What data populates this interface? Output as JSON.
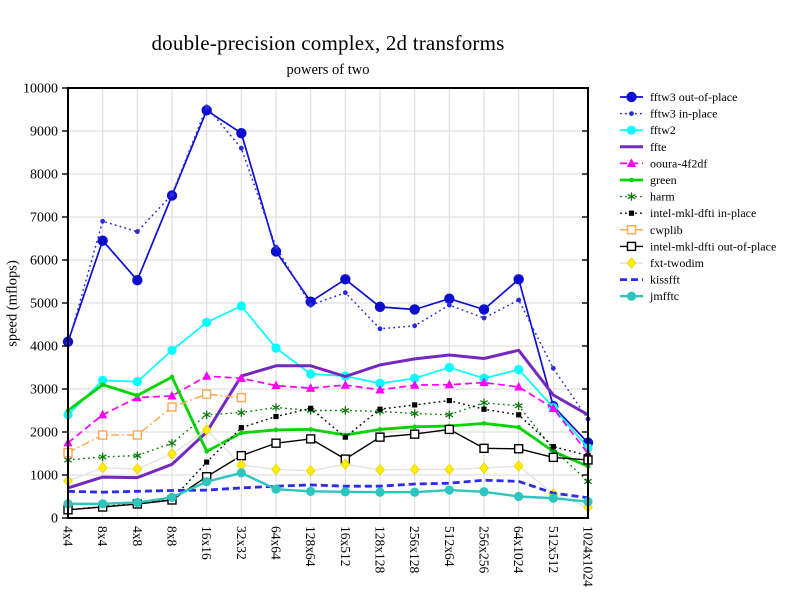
{
  "chart_data": {
    "type": "line",
    "title": "double-precision complex, 2d transforms",
    "subtitle": "powers of two",
    "xlabel": "",
    "ylabel": "speed (mflops)",
    "ylim": [
      0,
      10000
    ],
    "y_ticks": [
      0,
      1000,
      2000,
      3000,
      4000,
      5000,
      6000,
      7000,
      8000,
      9000,
      10000
    ],
    "grid": true,
    "legend_position": "right",
    "categories": [
      "4x4",
      "8x4",
      "4x8",
      "8x8",
      "16x16",
      "32x32",
      "64x64",
      "128x64",
      "16x512",
      "128x128",
      "256x128",
      "512x64",
      "256x256",
      "64x1024",
      "512x512",
      "1024x1024"
    ],
    "series": [
      {
        "name": "fftw3 out-of-place",
        "color": "#0d0dd0",
        "line": "solid",
        "width": 1.7,
        "marker": "circle-lg",
        "values": [
          4100,
          6450,
          5530,
          7500,
          9480,
          8950,
          6200,
          5030,
          5550,
          4910,
          4850,
          5100,
          4850,
          5550,
          2600,
          1750
        ]
      },
      {
        "name": "fftw3 in-place",
        "color": "#2a2ad6",
        "line": "dotted",
        "width": 1.5,
        "marker": "circle-sm",
        "values": [
          4050,
          6900,
          6660,
          7520,
          9560,
          8600,
          6300,
          4950,
          5240,
          4400,
          4470,
          4950,
          4650,
          5070,
          3480,
          2300
        ]
      },
      {
        "name": "fftw2",
        "color": "#00ffff",
        "line": "solid",
        "width": 1.7,
        "marker": "circle-md",
        "values": [
          2400,
          3200,
          3170,
          3900,
          4550,
          4930,
          3950,
          3350,
          3300,
          3130,
          3250,
          3500,
          3250,
          3450,
          2570,
          1630
        ]
      },
      {
        "name": "ffte",
        "color": "#7528bf",
        "line": "solid",
        "width": 3,
        "marker": "none",
        "values": [
          700,
          950,
          940,
          1250,
          2000,
          3300,
          3540,
          3540,
          3290,
          3560,
          3700,
          3790,
          3710,
          3900,
          2860,
          2400
        ]
      },
      {
        "name": "ooura-4f2df",
        "color": "#ff00ff",
        "line": "dashed",
        "width": 1.7,
        "marker": "triangle",
        "values": [
          1750,
          2400,
          2800,
          2840,
          3300,
          3250,
          3080,
          3020,
          3090,
          2980,
          3090,
          3100,
          3150,
          3050,
          2550,
          1500
        ]
      },
      {
        "name": "green",
        "color": "#00d500",
        "line": "solid",
        "width": 2.8,
        "marker": "dot",
        "values": [
          2500,
          3100,
          2850,
          3280,
          1550,
          1980,
          2050,
          2060,
          1930,
          2060,
          2120,
          2140,
          2200,
          2110,
          1550,
          1200
        ]
      },
      {
        "name": "harm",
        "color": "#0b7b0b",
        "line": "dotted",
        "width": 1.4,
        "marker": "asterisk",
        "values": [
          1350,
          1420,
          1450,
          1740,
          2400,
          2450,
          2570,
          2500,
          2500,
          2480,
          2430,
          2400,
          2680,
          2610,
          1600,
          850
        ]
      },
      {
        "name": "intel-mkl-dfti in-place",
        "color": "#000000",
        "line": "dotted",
        "width": 1.4,
        "marker": "square-sm",
        "values": [
          195,
          265,
          340,
          430,
          1300,
          2100,
          2360,
          2550,
          1880,
          2530,
          2630,
          2730,
          2530,
          2400,
          1660,
          1450
        ]
      },
      {
        "name": "cwplib",
        "color": "#ffa850",
        "line": "dashdot",
        "width": 1.5,
        "marker": "square-open",
        "values": [
          1520,
          1930,
          1930,
          2580,
          2880,
          2800,
          null,
          null,
          null,
          null,
          null,
          null,
          null,
          null,
          null,
          null
        ]
      },
      {
        "name": "intel-mkl-dfti out-of-place",
        "color": "#000000",
        "line": "solid",
        "width": 1.4,
        "marker": "square-open",
        "values": [
          190,
          256,
          326,
          419,
          960,
          1450,
          1740,
          1840,
          1370,
          1880,
          1950,
          2060,
          1620,
          1610,
          1410,
          1350
        ]
      },
      {
        "name": "fxt-twodim",
        "color": "#ffee00",
        "line_color": "#e3e3e3",
        "line": "solid",
        "width": 1.4,
        "marker": "diamond",
        "values": [
          860,
          1170,
          1140,
          1490,
          2050,
          1230,
          1130,
          1100,
          1250,
          1120,
          1130,
          1130,
          1160,
          1210,
          560,
          250
        ]
      },
      {
        "name": "kissfft",
        "color": "#2b2bee",
        "line": "dashed",
        "width": 2.8,
        "marker": "none",
        "values": [
          620,
          600,
          620,
          640,
          650,
          700,
          740,
          770,
          740,
          740,
          790,
          810,
          880,
          850,
          580,
          470
        ]
      },
      {
        "name": "jmfftc",
        "color": "#2cc5c0",
        "line": "solid",
        "width": 2.4,
        "marker": "circle-md",
        "values": [
          330,
          330,
          360,
          480,
          845,
          1050,
          670,
          620,
          610,
          600,
          600,
          650,
          610,
          500,
          460,
          380
        ]
      }
    ]
  }
}
